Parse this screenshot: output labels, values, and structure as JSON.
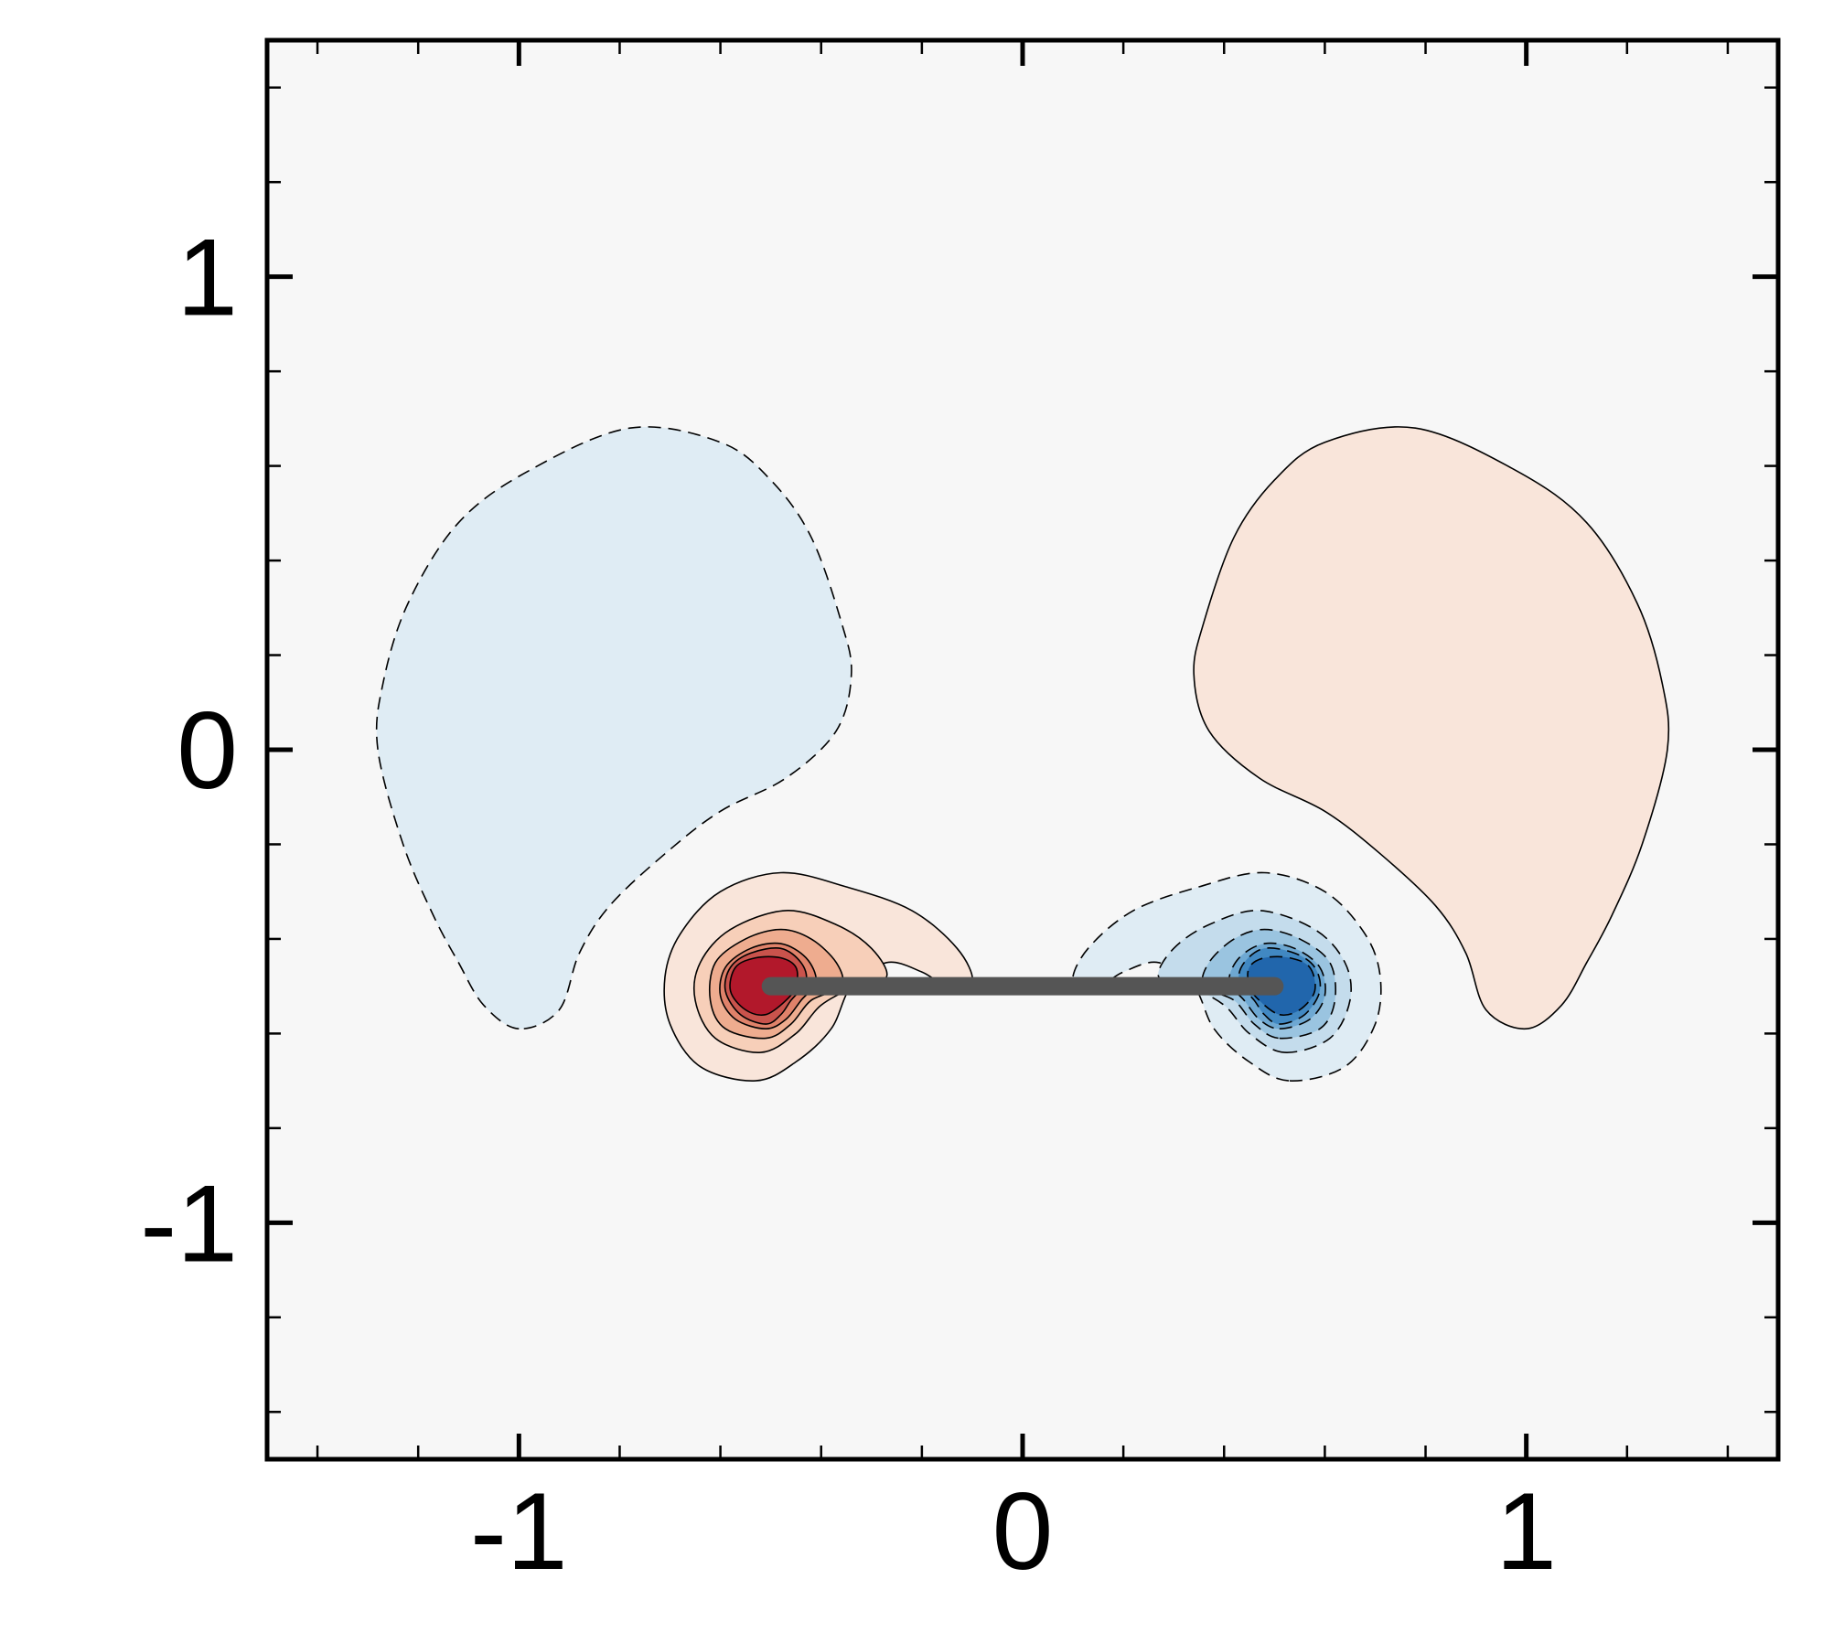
{
  "chart_data": {
    "type": "contour",
    "title": "",
    "xlabel": "",
    "ylabel": "",
    "xlim": [
      -1.5,
      1.5
    ],
    "ylim": [
      -1.5,
      1.5
    ],
    "x_ticks": [
      -1,
      0,
      1
    ],
    "y_ticks": [
      -1,
      0,
      1
    ],
    "x_tick_labels": [
      "-1",
      "0",
      "1"
    ],
    "y_tick_labels": [
      "-1",
      "0",
      "1"
    ],
    "minor_tick_step": 0.2,
    "grid": false,
    "legend": "none",
    "colors": {
      "background": "#f7f7f7",
      "positive": [
        "#f9e5da",
        "#f7cfb9",
        "#eeac8f",
        "#e0826a",
        "#c9534c",
        "#b2182b"
      ],
      "negative": [
        "#dfecf4",
        "#c4dcec",
        "#9ac4e0",
        "#6ea8d2",
        "#4188c2",
        "#2166ac"
      ],
      "plate": "#555555"
    },
    "contour_line_styles": {
      "positive": "solid",
      "negative": "dashed"
    },
    "plate": {
      "x0": -0.5,
      "x1": 0.5,
      "y": -0.5
    },
    "regions": [
      {
        "sign": "negative",
        "level": 1,
        "points": [
          [
            -1.0,
            -0.59
          ],
          [
            -1.07,
            -0.54
          ],
          [
            -1.12,
            -0.45
          ],
          [
            -1.17,
            -0.35
          ],
          [
            -1.23,
            -0.2
          ],
          [
            -1.28,
            0.0
          ],
          [
            -1.27,
            0.14
          ],
          [
            -1.22,
            0.31
          ],
          [
            -1.12,
            0.48
          ],
          [
            -0.98,
            0.59
          ],
          [
            -0.78,
            0.68
          ],
          [
            -0.6,
            0.65
          ],
          [
            -0.5,
            0.57
          ],
          [
            -0.42,
            0.45
          ],
          [
            -0.36,
            0.27
          ],
          [
            -0.34,
            0.16
          ],
          [
            -0.37,
            0.04
          ],
          [
            -0.47,
            -0.06
          ],
          [
            -0.6,
            -0.13
          ],
          [
            -0.71,
            -0.22
          ],
          [
            -0.82,
            -0.33
          ],
          [
            -0.88,
            -0.43
          ],
          [
            -0.92,
            -0.55
          ]
        ]
      },
      {
        "sign": "positive",
        "level": 1,
        "points": [
          [
            1.0,
            -0.59
          ],
          [
            1.07,
            -0.54
          ],
          [
            1.12,
            -0.45
          ],
          [
            1.17,
            -0.35
          ],
          [
            1.23,
            -0.2
          ],
          [
            1.28,
            0.0
          ],
          [
            1.27,
            0.14
          ],
          [
            1.22,
            0.31
          ],
          [
            1.12,
            0.48
          ],
          [
            0.98,
            0.59
          ],
          [
            0.78,
            0.68
          ],
          [
            0.6,
            0.65
          ],
          [
            0.5,
            0.57
          ],
          [
            0.42,
            0.45
          ],
          [
            0.36,
            0.27
          ],
          [
            0.34,
            0.16
          ],
          [
            0.37,
            0.04
          ],
          [
            0.47,
            -0.06
          ],
          [
            0.6,
            -0.13
          ],
          [
            0.71,
            -0.22
          ],
          [
            0.82,
            -0.33
          ],
          [
            0.88,
            -0.43
          ],
          [
            0.92,
            -0.55
          ]
        ]
      },
      {
        "sign": "positive",
        "level": 1,
        "points": [
          [
            -0.53,
            -0.7
          ],
          [
            -0.64,
            -0.67
          ],
          [
            -0.7,
            -0.58
          ],
          [
            -0.71,
            -0.48
          ],
          [
            -0.68,
            -0.39
          ],
          [
            -0.6,
            -0.3
          ],
          [
            -0.48,
            -0.26
          ],
          [
            -0.35,
            -0.29
          ],
          [
            -0.22,
            -0.34
          ],
          [
            -0.13,
            -0.42
          ],
          [
            -0.1,
            -0.49
          ],
          [
            -0.15,
            -0.5
          ],
          [
            -0.2,
            -0.47
          ],
          [
            -0.27,
            -0.45
          ],
          [
            -0.34,
            -0.5
          ],
          [
            -0.38,
            -0.59
          ],
          [
            -0.45,
            -0.66
          ]
        ]
      },
      {
        "sign": "positive",
        "level": 2,
        "points": [
          [
            -0.52,
            -0.64
          ],
          [
            -0.61,
            -0.61
          ],
          [
            -0.65,
            -0.53
          ],
          [
            -0.64,
            -0.45
          ],
          [
            -0.58,
            -0.38
          ],
          [
            -0.47,
            -0.34
          ],
          [
            -0.37,
            -0.37
          ],
          [
            -0.3,
            -0.42
          ],
          [
            -0.27,
            -0.48
          ],
          [
            -0.33,
            -0.5
          ],
          [
            -0.4,
            -0.54
          ],
          [
            -0.45,
            -0.6
          ]
        ]
      },
      {
        "sign": "positive",
        "level": 3,
        "points": [
          [
            -0.51,
            -0.61
          ],
          [
            -0.59,
            -0.59
          ],
          [
            -0.62,
            -0.53
          ],
          [
            -0.61,
            -0.45
          ],
          [
            -0.55,
            -0.4
          ],
          [
            -0.48,
            -0.38
          ],
          [
            -0.42,
            -0.4
          ],
          [
            -0.37,
            -0.45
          ],
          [
            -0.36,
            -0.5
          ],
          [
            -0.42,
            -0.53
          ],
          [
            -0.46,
            -0.58
          ]
        ]
      },
      {
        "sign": "positive",
        "level": 4,
        "points": [
          [
            -0.51,
            -0.59
          ],
          [
            -0.57,
            -0.57
          ],
          [
            -0.6,
            -0.52
          ],
          [
            -0.59,
            -0.46
          ],
          [
            -0.54,
            -0.42
          ],
          [
            -0.48,
            -0.41
          ],
          [
            -0.43,
            -0.44
          ],
          [
            -0.41,
            -0.49
          ],
          [
            -0.44,
            -0.53
          ],
          [
            -0.47,
            -0.57
          ]
        ]
      },
      {
        "sign": "positive",
        "level": 5,
        "points": [
          [
            -0.51,
            -0.58
          ],
          [
            -0.56,
            -0.56
          ],
          [
            -0.59,
            -0.51
          ],
          [
            -0.58,
            -0.46
          ],
          [
            -0.54,
            -0.43
          ],
          [
            -0.48,
            -0.42
          ],
          [
            -0.44,
            -0.45
          ],
          [
            -0.43,
            -0.49
          ],
          [
            -0.46,
            -0.53
          ],
          [
            -0.48,
            -0.56
          ]
        ]
      },
      {
        "sign": "positive",
        "level": 6,
        "points": [
          [
            -0.51,
            -0.56
          ],
          [
            -0.55,
            -0.55
          ],
          [
            -0.58,
            -0.51
          ],
          [
            -0.57,
            -0.46
          ],
          [
            -0.53,
            -0.44
          ],
          [
            -0.48,
            -0.44
          ],
          [
            -0.45,
            -0.46
          ],
          [
            -0.45,
            -0.5
          ],
          [
            -0.47,
            -0.53
          ]
        ]
      },
      {
        "sign": "negative",
        "level": 1,
        "points": [
          [
            0.53,
            -0.7
          ],
          [
            0.64,
            -0.67
          ],
          [
            0.7,
            -0.58
          ],
          [
            0.71,
            -0.48
          ],
          [
            0.68,
            -0.39
          ],
          [
            0.6,
            -0.3
          ],
          [
            0.48,
            -0.26
          ],
          [
            0.35,
            -0.29
          ],
          [
            0.22,
            -0.34
          ],
          [
            0.13,
            -0.42
          ],
          [
            0.1,
            -0.49
          ],
          [
            0.15,
            -0.5
          ],
          [
            0.2,
            -0.47
          ],
          [
            0.27,
            -0.45
          ],
          [
            0.34,
            -0.5
          ],
          [
            0.38,
            -0.59
          ],
          [
            0.45,
            -0.66
          ]
        ]
      },
      {
        "sign": "negative",
        "level": 2,
        "points": [
          [
            0.52,
            -0.64
          ],
          [
            0.61,
            -0.61
          ],
          [
            0.65,
            -0.53
          ],
          [
            0.64,
            -0.45
          ],
          [
            0.58,
            -0.38
          ],
          [
            0.47,
            -0.34
          ],
          [
            0.37,
            -0.37
          ],
          [
            0.3,
            -0.42
          ],
          [
            0.27,
            -0.48
          ],
          [
            0.33,
            -0.5
          ],
          [
            0.4,
            -0.54
          ],
          [
            0.45,
            -0.6
          ]
        ]
      },
      {
        "sign": "negative",
        "level": 3,
        "points": [
          [
            0.51,
            -0.61
          ],
          [
            0.59,
            -0.59
          ],
          [
            0.62,
            -0.53
          ],
          [
            0.61,
            -0.45
          ],
          [
            0.55,
            -0.4
          ],
          [
            0.48,
            -0.38
          ],
          [
            0.42,
            -0.4
          ],
          [
            0.37,
            -0.45
          ],
          [
            0.36,
            -0.5
          ],
          [
            0.42,
            -0.53
          ],
          [
            0.46,
            -0.58
          ]
        ]
      },
      {
        "sign": "negative",
        "level": 4,
        "points": [
          [
            0.51,
            -0.59
          ],
          [
            0.57,
            -0.57
          ],
          [
            0.6,
            -0.52
          ],
          [
            0.59,
            -0.46
          ],
          [
            0.54,
            -0.42
          ],
          [
            0.48,
            -0.41
          ],
          [
            0.43,
            -0.44
          ],
          [
            0.41,
            -0.49
          ],
          [
            0.44,
            -0.53
          ],
          [
            0.47,
            -0.57
          ]
        ]
      },
      {
        "sign": "negative",
        "level": 5,
        "points": [
          [
            0.51,
            -0.58
          ],
          [
            0.56,
            -0.56
          ],
          [
            0.59,
            -0.51
          ],
          [
            0.58,
            -0.46
          ],
          [
            0.54,
            -0.43
          ],
          [
            0.48,
            -0.42
          ],
          [
            0.44,
            -0.45
          ],
          [
            0.43,
            -0.49
          ],
          [
            0.46,
            -0.53
          ],
          [
            0.48,
            -0.56
          ]
        ]
      },
      {
        "sign": "negative",
        "level": 6,
        "points": [
          [
            0.51,
            -0.56
          ],
          [
            0.55,
            -0.55
          ],
          [
            0.58,
            -0.51
          ],
          [
            0.57,
            -0.46
          ],
          [
            0.53,
            -0.44
          ],
          [
            0.48,
            -0.44
          ],
          [
            0.45,
            -0.46
          ],
          [
            0.45,
            -0.5
          ],
          [
            0.47,
            -0.53
          ]
        ]
      }
    ]
  }
}
